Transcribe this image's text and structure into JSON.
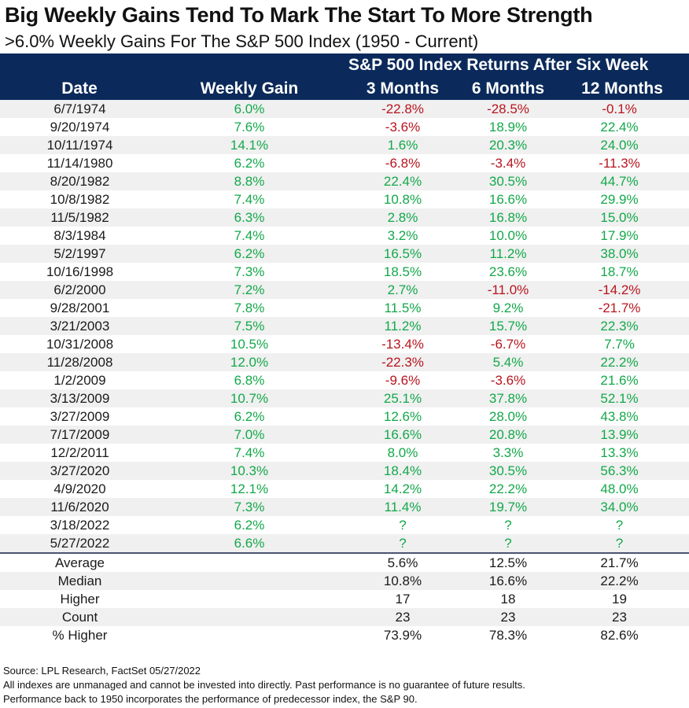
{
  "title": "Big Weekly Gains Tend To Mark The Start To More Strength",
  "subtitle": ">6.0% Weekly Gains For The S&P 500 Index (1950 - Current)",
  "header": {
    "group_label": "S&P 500 Index Returns After Six Week",
    "columns": [
      "Date",
      "Weekly Gain",
      "3 Months",
      "6 Months",
      "12 Months"
    ]
  },
  "colors": {
    "header_bg": "#0b2a5b",
    "positive": "#13a84a",
    "negative": "#b8141e",
    "row_shade": "#f0f0f0"
  },
  "chart_data": {
    "type": "table",
    "title": "Big Weekly Gains Tend To Mark The Start To More Strength",
    "subtitle": ">6.0% Weekly Gains For The S&P 500 Index (1950 - Current)",
    "columns": [
      "Date",
      "Weekly Gain",
      "3 Months",
      "6 Months",
      "12 Months"
    ],
    "rows": [
      [
        "6/7/1974",
        "6.0%",
        "-22.8%",
        "-28.5%",
        "-0.1%"
      ],
      [
        "9/20/1974",
        "7.6%",
        "-3.6%",
        "18.9%",
        "22.4%"
      ],
      [
        "10/11/1974",
        "14.1%",
        "1.6%",
        "20.3%",
        "24.0%"
      ],
      [
        "11/14/1980",
        "6.2%",
        "-6.8%",
        "-3.4%",
        "-11.3%"
      ],
      [
        "8/20/1982",
        "8.8%",
        "22.4%",
        "30.5%",
        "44.7%"
      ],
      [
        "10/8/1982",
        "7.4%",
        "10.8%",
        "16.6%",
        "29.9%"
      ],
      [
        "11/5/1982",
        "6.3%",
        "2.8%",
        "16.8%",
        "15.0%"
      ],
      [
        "8/3/1984",
        "7.4%",
        "3.2%",
        "10.0%",
        "17.9%"
      ],
      [
        "5/2/1997",
        "6.2%",
        "16.5%",
        "11.2%",
        "38.0%"
      ],
      [
        "10/16/1998",
        "7.3%",
        "18.5%",
        "23.6%",
        "18.7%"
      ],
      [
        "6/2/2000",
        "7.2%",
        "2.7%",
        "-11.0%",
        "-14.2%"
      ],
      [
        "9/28/2001",
        "7.8%",
        "11.5%",
        "9.2%",
        "-21.7%"
      ],
      [
        "3/21/2003",
        "7.5%",
        "11.2%",
        "15.7%",
        "22.3%"
      ],
      [
        "10/31/2008",
        "10.5%",
        "-13.4%",
        "-6.7%",
        "7.7%"
      ],
      [
        "11/28/2008",
        "12.0%",
        "-22.3%",
        "5.4%",
        "22.2%"
      ],
      [
        "1/2/2009",
        "6.8%",
        "-9.6%",
        "-3.6%",
        "21.6%"
      ],
      [
        "3/13/2009",
        "10.7%",
        "25.1%",
        "37.8%",
        "52.1%"
      ],
      [
        "3/27/2009",
        "6.2%",
        "12.6%",
        "28.0%",
        "43.8%"
      ],
      [
        "7/17/2009",
        "7.0%",
        "16.6%",
        "20.8%",
        "13.9%"
      ],
      [
        "12/2/2011",
        "7.4%",
        "8.0%",
        "3.3%",
        "13.3%"
      ],
      [
        "3/27/2020",
        "10.3%",
        "18.4%",
        "30.5%",
        "56.3%"
      ],
      [
        "4/9/2020",
        "12.1%",
        "14.2%",
        "22.2%",
        "48.0%"
      ],
      [
        "11/6/2020",
        "7.3%",
        "11.4%",
        "19.7%",
        "34.0%"
      ],
      [
        "3/18/2022",
        "6.2%",
        "?",
        "?",
        "?"
      ],
      [
        "5/27/2022",
        "6.6%",
        "?",
        "?",
        "?"
      ]
    ],
    "summary": [
      [
        "Average",
        "",
        "5.6%",
        "12.5%",
        "21.7%"
      ],
      [
        "Median",
        "",
        "10.8%",
        "16.6%",
        "22.2%"
      ],
      [
        "Higher",
        "",
        "17",
        "18",
        "19"
      ],
      [
        "Count",
        "",
        "23",
        "23",
        "23"
      ],
      [
        "% Higher",
        "",
        "73.9%",
        "78.3%",
        "82.6%"
      ]
    ]
  },
  "footer": [
    "Source: LPL Research, FactSet 05/27/2022",
    "All indexes are unmanaged and cannot be invested into directly. Past performance is no guarantee of future results.",
    "Performance back to 1950 incorporates the performance of predecessor index, the S&P 90."
  ]
}
